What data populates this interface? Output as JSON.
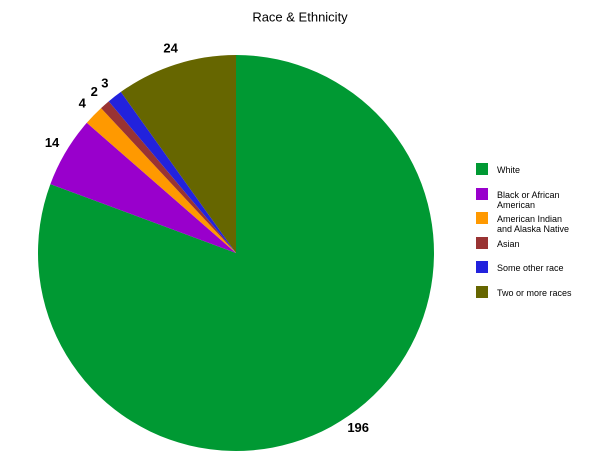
{
  "chart_data": {
    "type": "pie",
    "title": "Race & Ethnicity",
    "categories": [
      "White",
      "Black or African American",
      "American Indian and Alaska Native",
      "Asian",
      "Some other race",
      "Two or more races"
    ],
    "values": [
      196,
      14,
      4,
      2,
      3,
      24
    ],
    "colors": [
      "#009933",
      "#9900cc",
      "#ff9900",
      "#993333",
      "#2222dd",
      "#666600"
    ],
    "legend": "right"
  }
}
